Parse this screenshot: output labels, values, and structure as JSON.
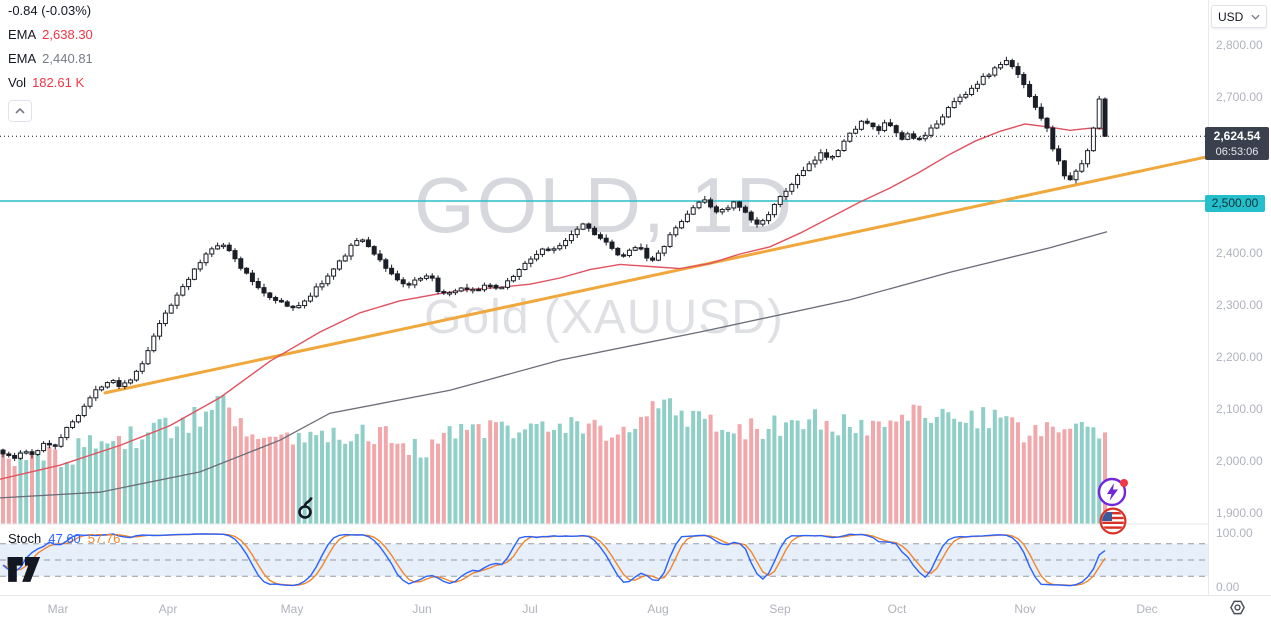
{
  "legend": {
    "change": "-0.84 (-0.03%)",
    "ema_fast_label": "EMA",
    "ema_fast_value": "2,638.30",
    "ema_slow_label": "EMA",
    "ema_slow_value": "2,440.81",
    "vol_label": "Vol",
    "vol_value": "182.61 K"
  },
  "currency_selector": {
    "value": "USD"
  },
  "watermark": {
    "line1": "GOLD, 1D",
    "line2": "Gold (XAUUSD)"
  },
  "badges": {
    "last_price": "2,624.54",
    "countdown": "06:53:06",
    "level": "2,500.00"
  },
  "stoch_legend": {
    "label": "Stoch",
    "k_value": "47.60",
    "d_value": "57.76"
  },
  "colors": {
    "candle": "#1B1E27",
    "ema_fast": "#E05260",
    "ema_slow": "#6A6D78",
    "trendline": "#F0A73C",
    "level_line": "#2CBECA",
    "volume_up": "#8FCFC7",
    "volume_down": "#F2A7AA",
    "stoch_k": "#2962FF",
    "stoch_d": "#F0862E",
    "stoch_band": "rgba(56,122,223,0.12)",
    "dashed_grid": "#7E838C",
    "badge_dark": "#3A404E",
    "badge_teal": "#25BFCB",
    "value_red": "#F23645",
    "value_gray": "#787B86",
    "axis_text": "#B0B3BC"
  },
  "chart_data": {
    "type": "candlestick",
    "title": "GOLD, 1D",
    "subtitle": "Gold (XAUUSD)",
    "interval": "1D",
    "last_price": 2624.54,
    "change": -0.84,
    "change_pct": -0.03,
    "y_axis": {
      "ticks": [
        2800,
        2700,
        2500,
        2400,
        2300,
        2200,
        2100,
        2000,
        1900
      ],
      "visible_range": [
        1879,
        2886
      ]
    },
    "x_axis": {
      "months": [
        "Mar",
        "Apr",
        "May",
        "Jun",
        "Jul",
        "Aug",
        "Sep",
        "Oct",
        "Nov",
        "Dec"
      ]
    },
    "levels": {
      "horizontal_level": 2500,
      "last_price_line": 2624.54
    },
    "trendline": {
      "points": [
        [
          105,
          2131
        ],
        [
          1207,
          2585
        ]
      ]
    },
    "ema_fast": {
      "value": 2638.3,
      "points": [
        [
          0,
          1965
        ],
        [
          60,
          1992
        ],
        [
          120,
          2030
        ],
        [
          170,
          2068
        ],
        [
          220,
          2122
        ],
        [
          270,
          2192
        ],
        [
          320,
          2248
        ],
        [
          360,
          2285
        ],
        [
          400,
          2308
        ],
        [
          440,
          2322
        ],
        [
          470,
          2330
        ],
        [
          500,
          2334
        ],
        [
          530,
          2340
        ],
        [
          560,
          2352
        ],
        [
          590,
          2368
        ],
        [
          620,
          2378
        ],
        [
          650,
          2374
        ],
        [
          680,
          2370
        ],
        [
          710,
          2380
        ],
        [
          740,
          2398
        ],
        [
          770,
          2412
        ],
        [
          800,
          2438
        ],
        [
          830,
          2468
        ],
        [
          860,
          2498
        ],
        [
          890,
          2525
        ],
        [
          920,
          2556
        ],
        [
          950,
          2590
        ],
        [
          975,
          2615
        ],
        [
          1000,
          2634
        ],
        [
          1025,
          2648
        ],
        [
          1050,
          2642
        ],
        [
          1070,
          2636
        ],
        [
          1090,
          2640
        ],
        [
          1107,
          2638.3
        ]
      ]
    },
    "ema_slow": {
      "value": 2440.81,
      "points": [
        [
          0,
          1929
        ],
        [
          100,
          1940
        ],
        [
          200,
          1979
        ],
        [
          280,
          2040
        ],
        [
          330,
          2092
        ],
        [
          450,
          2136
        ],
        [
          560,
          2194
        ],
        [
          700,
          2248
        ],
        [
          850,
          2310
        ],
        [
          950,
          2363
        ],
        [
          1050,
          2410
        ],
        [
          1107,
          2440.8
        ]
      ]
    },
    "close_path": [
      [
        2,
        2017
      ],
      [
        14,
        2004
      ],
      [
        24,
        2021
      ],
      [
        34,
        2008
      ],
      [
        44,
        2037
      ],
      [
        54,
        2027
      ],
      [
        64,
        2056
      ],
      [
        74,
        2079
      ],
      [
        84,
        2106
      ],
      [
        94,
        2131
      ],
      [
        104,
        2150
      ],
      [
        112,
        2158
      ],
      [
        120,
        2144
      ],
      [
        128,
        2154
      ],
      [
        136,
        2169
      ],
      [
        144,
        2192
      ],
      [
        152,
        2229
      ],
      [
        160,
        2267
      ],
      [
        168,
        2288
      ],
      [
        176,
        2317
      ],
      [
        184,
        2340
      ],
      [
        192,
        2360
      ],
      [
        200,
        2381
      ],
      [
        208,
        2402
      ],
      [
        216,
        2415
      ],
      [
        222,
        2421
      ],
      [
        230,
        2402
      ],
      [
        238,
        2379
      ],
      [
        246,
        2360
      ],
      [
        254,
        2342
      ],
      [
        262,
        2327
      ],
      [
        270,
        2315
      ],
      [
        278,
        2310
      ],
      [
        286,
        2298
      ],
      [
        294,
        2292
      ],
      [
        302,
        2306
      ],
      [
        310,
        2317
      ],
      [
        318,
        2337
      ],
      [
        326,
        2350
      ],
      [
        334,
        2369
      ],
      [
        342,
        2388
      ],
      [
        350,
        2412
      ],
      [
        358,
        2427
      ],
      [
        366,
        2419
      ],
      [
        374,
        2400
      ],
      [
        382,
        2381
      ],
      [
        390,
        2363
      ],
      [
        398,
        2348
      ],
      [
        406,
        2337
      ],
      [
        414,
        2344
      ],
      [
        422,
        2350
      ],
      [
        430,
        2356
      ],
      [
        438,
        2329
      ],
      [
        446,
        2317
      ],
      [
        454,
        2325
      ],
      [
        462,
        2331
      ],
      [
        470,
        2325
      ],
      [
        478,
        2331
      ],
      [
        486,
        2340
      ],
      [
        494,
        2329
      ],
      [
        502,
        2337
      ],
      [
        510,
        2350
      ],
      [
        518,
        2365
      ],
      [
        526,
        2381
      ],
      [
        534,
        2394
      ],
      [
        542,
        2408
      ],
      [
        550,
        2402
      ],
      [
        558,
        2413
      ],
      [
        566,
        2427
      ],
      [
        574,
        2442
      ],
      [
        582,
        2458
      ],
      [
        590,
        2446
      ],
      [
        598,
        2433
      ],
      [
        606,
        2419
      ],
      [
        614,
        2402
      ],
      [
        622,
        2390
      ],
      [
        630,
        2404
      ],
      [
        638,
        2419
      ],
      [
        646,
        2394
      ],
      [
        654,
        2383
      ],
      [
        662,
        2408
      ],
      [
        670,
        2433
      ],
      [
        678,
        2452
      ],
      [
        686,
        2471
      ],
      [
        694,
        2490
      ],
      [
        702,
        2504
      ],
      [
        710,
        2490
      ],
      [
        718,
        2479
      ],
      [
        726,
        2485
      ],
      [
        734,
        2496
      ],
      [
        742,
        2483
      ],
      [
        750,
        2465
      ],
      [
        758,
        2452
      ],
      [
        766,
        2471
      ],
      [
        774,
        2490
      ],
      [
        782,
        2510
      ],
      [
        790,
        2529
      ],
      [
        798,
        2548
      ],
      [
        806,
        2562
      ],
      [
        814,
        2577
      ],
      [
        822,
        2592
      ],
      [
        830,
        2583
      ],
      [
        838,
        2600
      ],
      [
        846,
        2619
      ],
      [
        854,
        2638
      ],
      [
        862,
        2654
      ],
      [
        870,
        2644
      ],
      [
        878,
        2635
      ],
      [
        886,
        2650
      ],
      [
        894,
        2635
      ],
      [
        902,
        2619
      ],
      [
        910,
        2631
      ],
      [
        918,
        2615
      ],
      [
        926,
        2625
      ],
      [
        934,
        2644
      ],
      [
        942,
        2663
      ],
      [
        950,
        2683
      ],
      [
        958,
        2696
      ],
      [
        966,
        2708
      ],
      [
        974,
        2721
      ],
      [
        982,
        2735
      ],
      [
        990,
        2746
      ],
      [
        998,
        2760
      ],
      [
        1006,
        2769
      ],
      [
        1014,
        2754
      ],
      [
        1022,
        2731
      ],
      [
        1030,
        2702
      ],
      [
        1038,
        2673
      ],
      [
        1046,
        2644
      ],
      [
        1054,
        2596
      ],
      [
        1062,
        2558
      ],
      [
        1068,
        2538
      ],
      [
        1076,
        2554
      ],
      [
        1084,
        2583
      ],
      [
        1092,
        2618
      ],
      [
        1098,
        2700
      ],
      [
        1102,
        2688
      ],
      [
        1106,
        2624.54
      ]
    ],
    "volume": {
      "last": "182.61 K",
      "profile": [
        [
          0,
          68
        ],
        [
          30,
          74
        ],
        [
          60,
          64
        ],
        [
          90,
          80
        ],
        [
          120,
          84
        ],
        [
          150,
          92
        ],
        [
          180,
          98
        ],
        [
          210,
          112
        ],
        [
          222,
          118
        ],
        [
          240,
          102
        ],
        [
          270,
          92
        ],
        [
          300,
          86
        ],
        [
          330,
          90
        ],
        [
          360,
          96
        ],
        [
          390,
          88
        ],
        [
          410,
          72
        ],
        [
          430,
          80
        ],
        [
          460,
          90
        ],
        [
          490,
          96
        ],
        [
          520,
          88
        ],
        [
          550,
          93
        ],
        [
          580,
          99
        ],
        [
          610,
          86
        ],
        [
          640,
          96
        ],
        [
          655,
          122
        ],
        [
          662,
          135
        ],
        [
          672,
          120
        ],
        [
          690,
          108
        ],
        [
          720,
          100
        ],
        [
          750,
          96
        ],
        [
          780,
          100
        ],
        [
          810,
          104
        ],
        [
          840,
          98
        ],
        [
          870,
          96
        ],
        [
          900,
          100
        ],
        [
          925,
          112
        ],
        [
          945,
          104
        ],
        [
          965,
          100
        ],
        [
          985,
          108
        ],
        [
          1005,
          96
        ],
        [
          1025,
          90
        ],
        [
          1045,
          94
        ],
        [
          1065,
          99
        ],
        [
          1080,
          104
        ],
        [
          1090,
          88
        ],
        [
          1100,
          82
        ],
        [
          1106,
          78
        ]
      ]
    },
    "stochastic": {
      "k": 47.6,
      "d": 57.76,
      "overbought": 80,
      "oversold": 20,
      "scale_ticks": [
        100,
        0
      ]
    }
  }
}
